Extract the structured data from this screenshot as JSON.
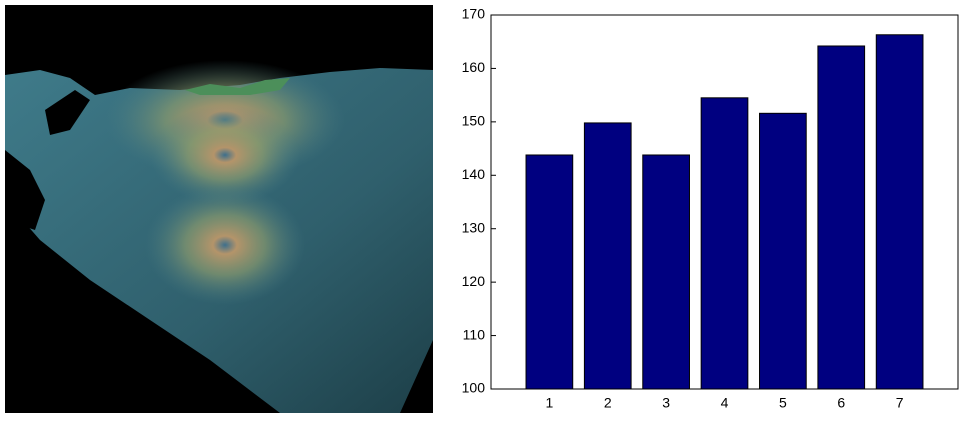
{
  "chart_data": {
    "type": "bar",
    "categories": [
      "1",
      "2",
      "3",
      "4",
      "5",
      "6",
      "7"
    ],
    "values": [
      143.8,
      149.8,
      143.8,
      154.5,
      151.6,
      164.2,
      166.3
    ],
    "color": "#000080",
    "ylim": [
      100,
      170
    ],
    "yticks": [
      100,
      110,
      120,
      130,
      140,
      150,
      160,
      170
    ],
    "grid": false
  }
}
